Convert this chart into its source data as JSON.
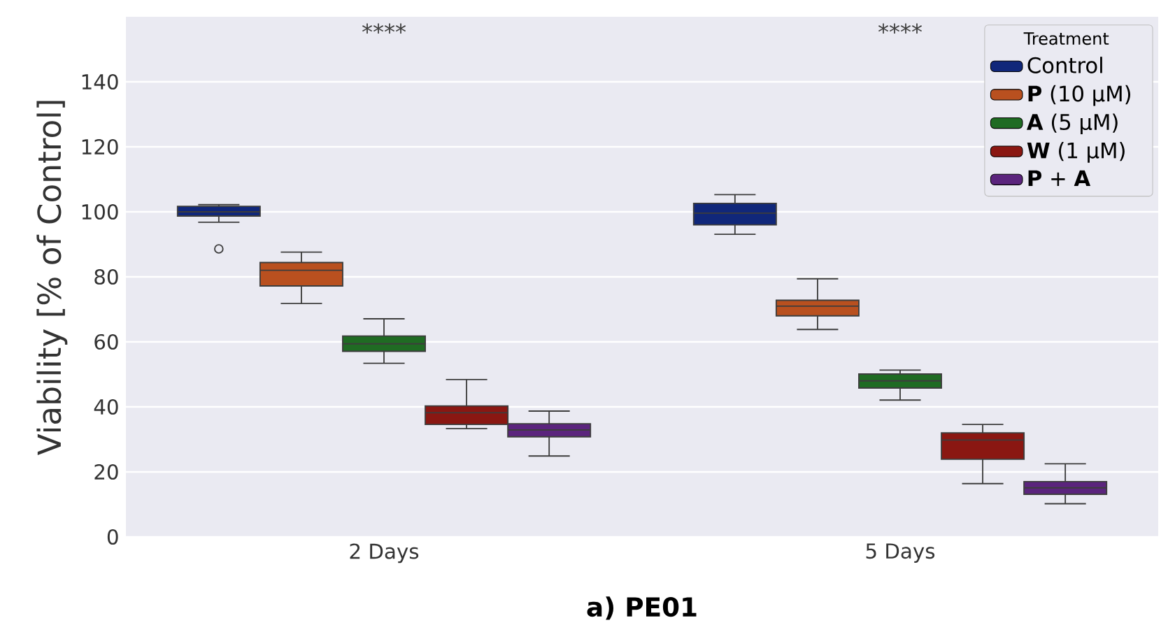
{
  "chart_data": {
    "type": "box",
    "ylabel": "Viability [% of Control]",
    "legend_title": "Treatment",
    "categories": [
      "2 Days",
      "5 Days"
    ],
    "ylim": [
      0,
      160
    ],
    "yticks": [
      0,
      20,
      40,
      60,
      80,
      100,
      120,
      140
    ],
    "grid": "y",
    "legend": "top right",
    "annotations": [
      "****",
      "****",
      "a) PE01"
    ],
    "series": [
      {
        "name": "Control",
        "color": "#10277a",
        "boxes": [
          {
            "low": 96.8,
            "q1": 98.7,
            "median": 100,
            "q3": 101.7,
            "high": 102.2,
            "outliers": [
              88.6
            ]
          },
          {
            "low": 93.1,
            "q1": 96,
            "median": 99.6,
            "q3": 102.6,
            "high": 105.3
          }
        ]
      },
      {
        "name": "**P** (10 µM)",
        "color": "#b9501f",
        "boxes": [
          {
            "low": 71.8,
            "q1": 77.2,
            "median": 82,
            "q3": 84.4,
            "high": 87.6
          },
          {
            "low": 63.8,
            "q1": 68,
            "median": 71,
            "q3": 72.8,
            "high": 79.4
          }
        ]
      },
      {
        "name": "**A** (5 µM)",
        "color": "#1f6b23",
        "boxes": [
          {
            "low": 53.4,
            "q1": 57.1,
            "median": 59.4,
            "q3": 61.8,
            "high": 67.1
          },
          {
            "low": 42.1,
            "q1": 45.8,
            "median": 48,
            "q3": 50.1,
            "high": 51.3
          }
        ]
      },
      {
        "name": "**W** (1 µM)",
        "color": "#8a1712",
        "boxes": [
          {
            "low": 33.3,
            "q1": 34.6,
            "median": 38.2,
            "q3": 40.3,
            "high": 48.4
          },
          {
            "low": 16.4,
            "q1": 23.9,
            "median": 29.8,
            "q3": 32,
            "high": 34.6
          }
        ]
      },
      {
        "name": "**P** + **A**",
        "color": "#5b247d",
        "boxes": [
          {
            "low": 24.9,
            "q1": 30.8,
            "median": 32.9,
            "q3": 34.8,
            "high": 38.7
          },
          {
            "low": 10.2,
            "q1": 13.1,
            "median": 15.1,
            "q3": 17,
            "high": 22.5
          }
        ]
      }
    ]
  }
}
